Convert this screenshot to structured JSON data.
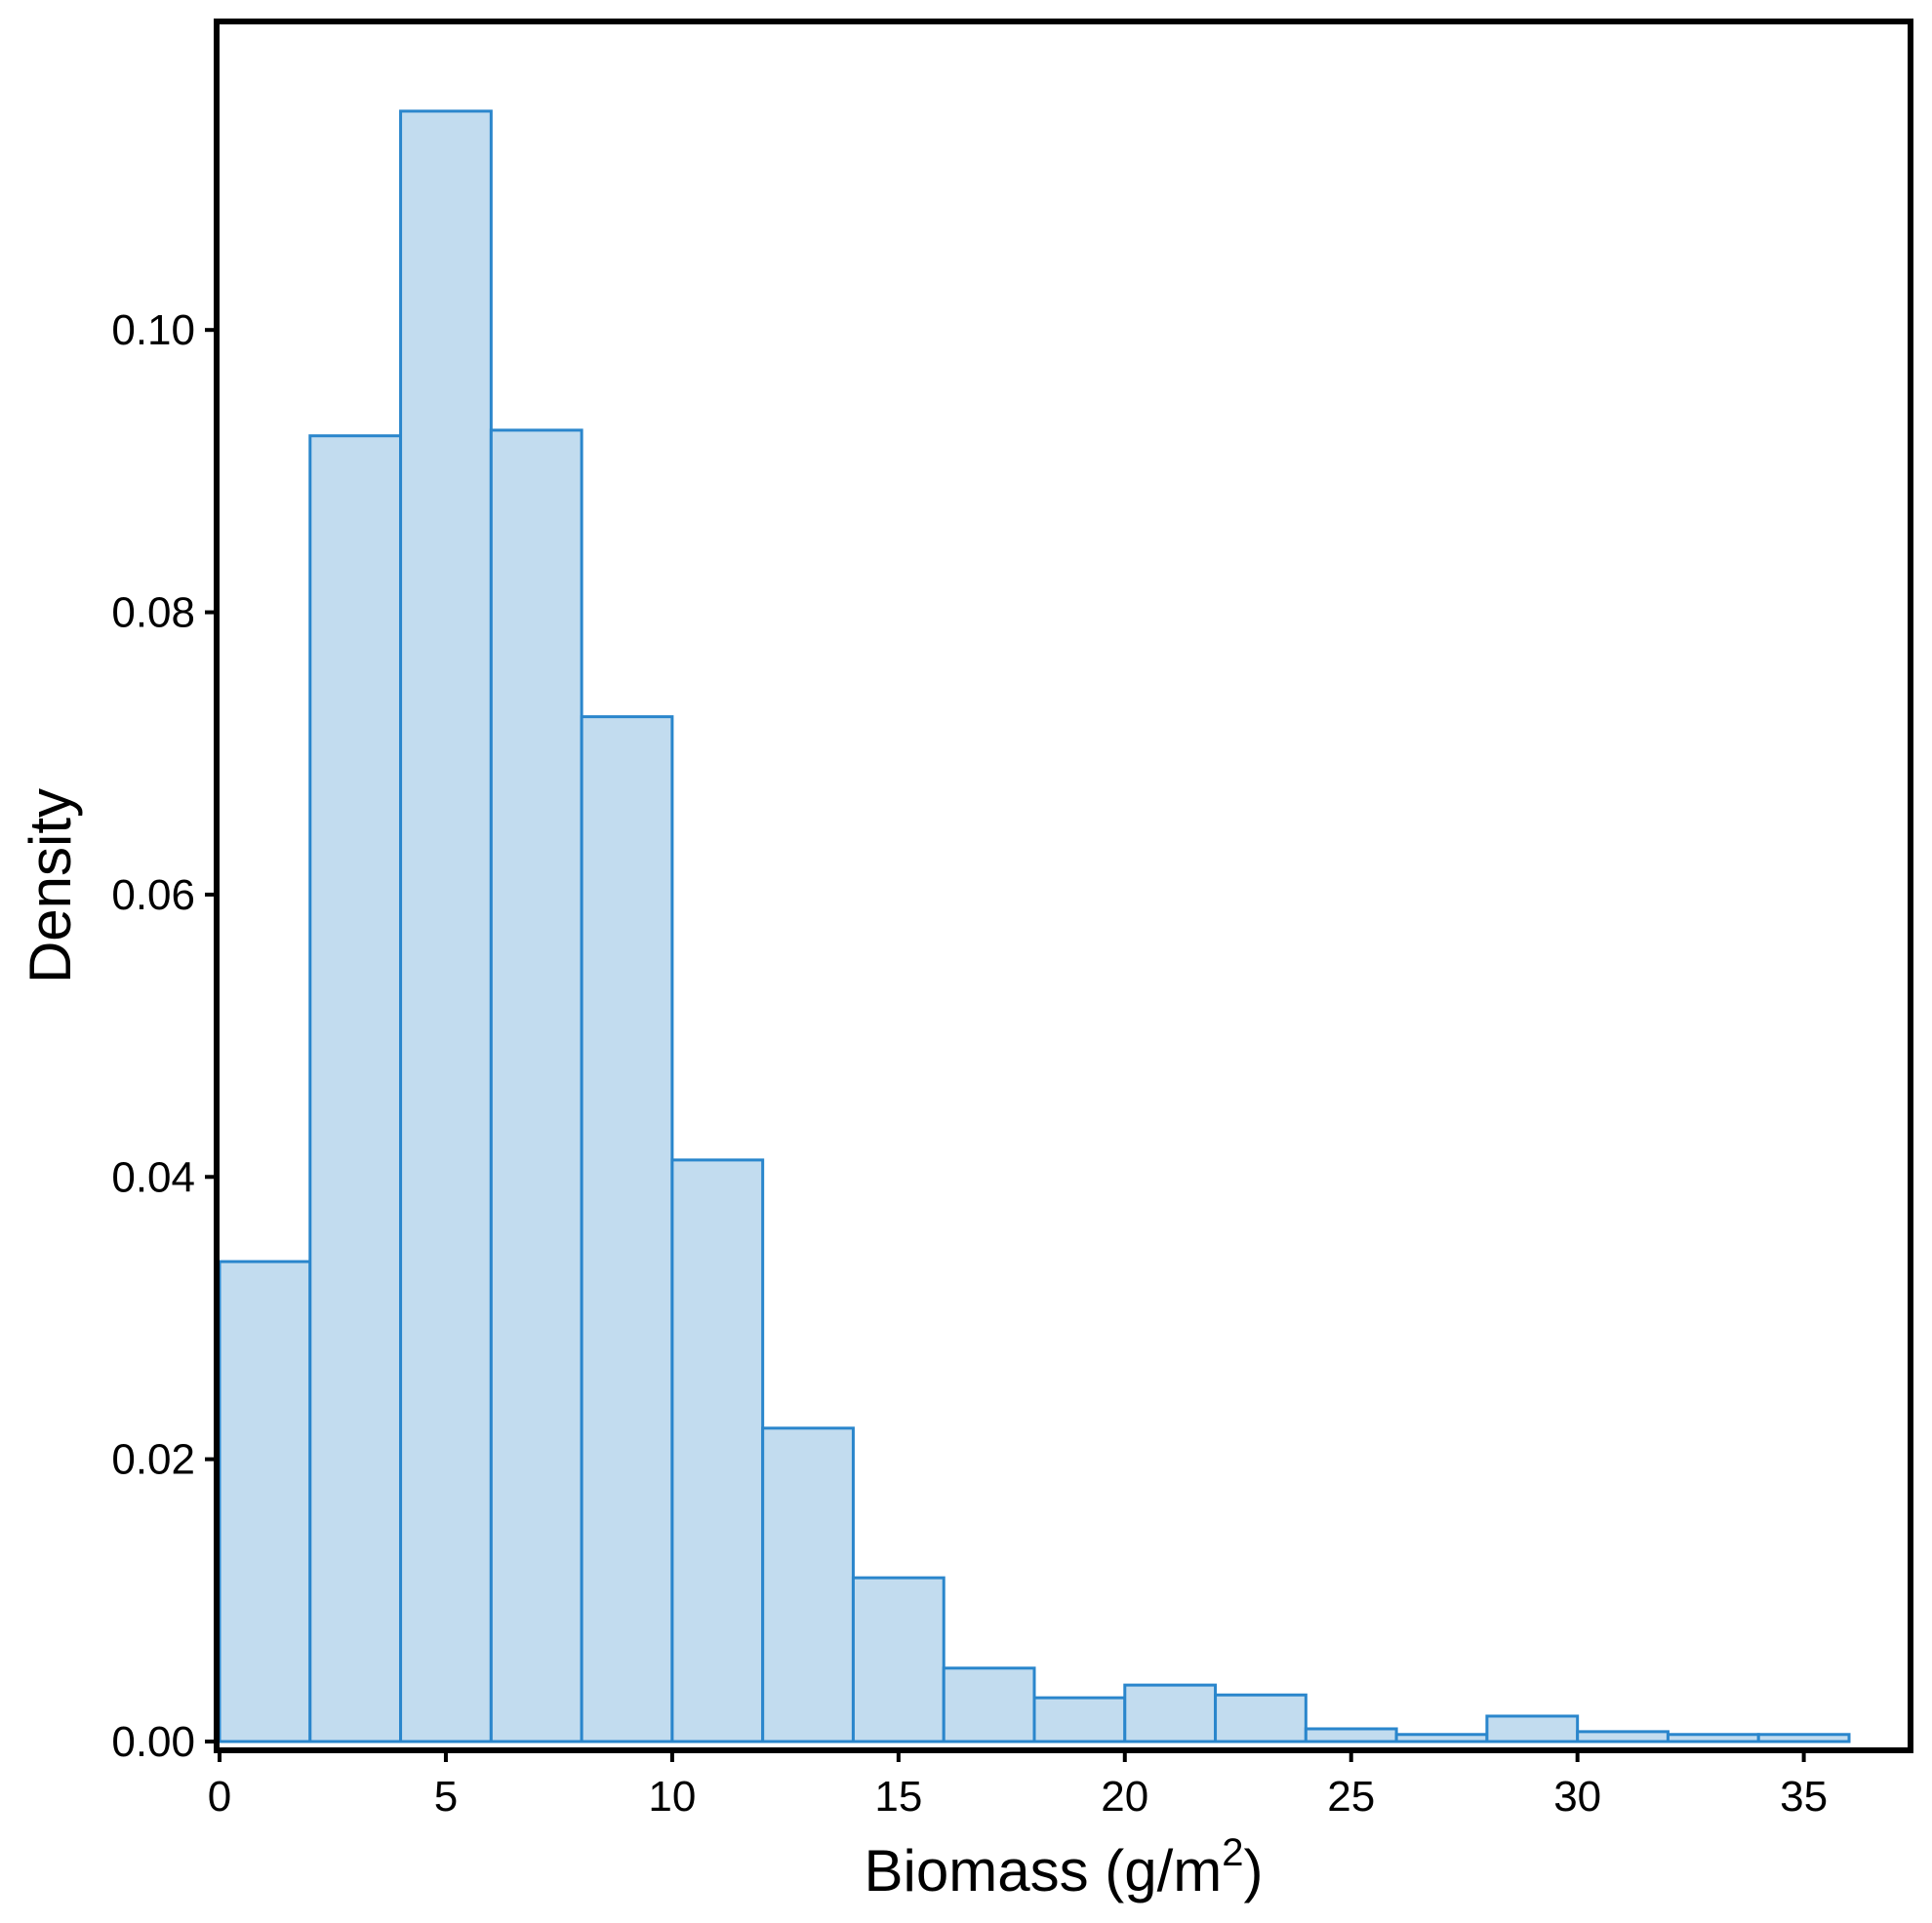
{
  "chart_data": {
    "type": "bar",
    "subtype": "histogram",
    "title": "",
    "xlabel": "Biomass (g/m",
    "xlabel_superscript": "2",
    "xlabel_suffix": ")",
    "ylabel": "Density",
    "bin_width": 2,
    "bin_edges": [
      0,
      2,
      4,
      6,
      8,
      10,
      12,
      14,
      16,
      18,
      20,
      22,
      24,
      26,
      28,
      30,
      32,
      34,
      36
    ],
    "values": [
      0.034,
      0.0925,
      0.1155,
      0.0929,
      0.0726,
      0.0412,
      0.0222,
      0.0116,
      0.0052,
      0.0031,
      0.004,
      0.0033,
      0.0009,
      0.0005,
      0.0018,
      0.0007,
      0.0005,
      0.0005
    ],
    "xlim": [
      0,
      36
    ],
    "ylim": [
      0,
      0.1175
    ],
    "xticks": [
      0,
      5,
      10,
      15,
      20,
      25,
      30,
      35
    ],
    "xtick_labels": [
      "0",
      "5",
      "10",
      "15",
      "20",
      "25",
      "30",
      "35"
    ],
    "yticks": [
      0,
      0.02,
      0.04,
      0.06,
      0.08,
      0.1
    ],
    "ytick_labels": [
      "0.00",
      "0.02",
      "0.04",
      "0.06",
      "0.08",
      "0.10"
    ],
    "grid": false,
    "colors": {
      "fill": "#c2dcef",
      "edge": "#2a86cc",
      "axis": "#000000"
    }
  }
}
